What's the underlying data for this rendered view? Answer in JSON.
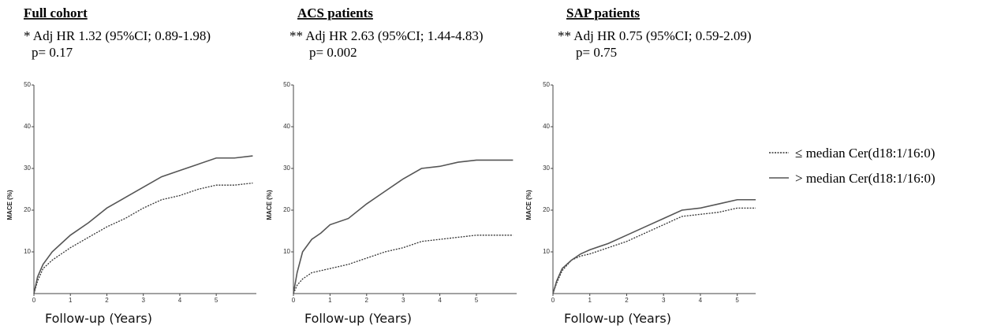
{
  "chart_data": [
    {
      "type": "line",
      "title": "Full cohort",
      "annotations": [
        "* Adj HR 1.32 (95%CI; 0.89-1.98)",
        "p= 0.17"
      ],
      "y_label": "MACE (%)",
      "x_label": "Follow-up (Years)",
      "x": [
        0,
        0.1,
        0.25,
        0.5,
        0.75,
        1,
        1.5,
        2,
        2.5,
        3,
        3.5,
        4,
        4.5,
        5,
        5.5,
        6
      ],
      "series": [
        {
          "style": "dotted",
          "color": "#333333",
          "values": [
            0,
            3,
            6,
            8,
            9.5,
            11,
            13.5,
            16,
            18,
            20.5,
            22.5,
            23.5,
            25,
            26,
            26,
            26.5
          ]
        },
        {
          "style": "solid",
          "color": "#555555",
          "values": [
            0,
            4,
            7,
            10,
            12,
            14,
            17,
            20.5,
            23,
            25.5,
            28,
            29.5,
            31,
            32.5,
            32.5,
            33
          ]
        }
      ],
      "xlim": [
        0,
        6.1
      ],
      "xticks": [
        0,
        1,
        2,
        3,
        4,
        5
      ],
      "ylim": [
        0,
        50
      ],
      "yticks": [
        10,
        20,
        30,
        40,
        50
      ]
    },
    {
      "type": "line",
      "title": "ACS patients",
      "annotations": [
        "** Adj HR 2.63 (95%CI; 1.44-4.83)",
        "p= 0.002"
      ],
      "y_label": "MACE (%)",
      "x_label": "Follow-up (Years)",
      "x": [
        0,
        0.1,
        0.25,
        0.5,
        0.75,
        1,
        1.5,
        2,
        2.5,
        3,
        3.5,
        4,
        4.5,
        5,
        5.5,
        6
      ],
      "series": [
        {
          "style": "dotted",
          "color": "#333333",
          "values": [
            0,
            2,
            3.5,
            5,
            5.5,
            6,
            7,
            8.5,
            10,
            11,
            12.5,
            13,
            13.5,
            14,
            14,
            14
          ]
        },
        {
          "style": "solid",
          "color": "#555555",
          "values": [
            0,
            5,
            10,
            13,
            14.5,
            16.5,
            18,
            21.5,
            24.5,
            27.5,
            30,
            30.5,
            31.5,
            32,
            32,
            32
          ]
        }
      ],
      "xlim": [
        0,
        6.1
      ],
      "xticks": [
        0,
        1,
        2,
        3,
        4,
        5
      ],
      "ylim": [
        0,
        50
      ],
      "yticks": [
        10,
        20,
        30,
        40,
        50
      ]
    },
    {
      "type": "line",
      "title": "SAP patients",
      "annotations": [
        "** Adj HR 0.75 (95%CI; 0.59-2.09)",
        "p= 0.75"
      ],
      "y_label": "MACE (%)",
      "x_label": "Follow-up (Years)",
      "x": [
        0,
        0.1,
        0.25,
        0.5,
        0.75,
        1,
        1.5,
        2,
        2.5,
        3,
        3.5,
        4,
        4.5,
        5,
        5.5
      ],
      "series": [
        {
          "style": "dotted",
          "color": "#333333",
          "values": [
            0,
            2.5,
            5.5,
            8,
            9,
            9.5,
            11,
            12.5,
            14.5,
            16.5,
            18.5,
            19,
            19.5,
            20.5,
            20.5
          ]
        },
        {
          "style": "solid",
          "color": "#555555",
          "values": [
            0,
            3,
            6,
            8,
            9.5,
            10.5,
            12,
            14,
            16,
            18,
            20,
            20.5,
            21.5,
            22.5,
            22.5
          ]
        }
      ],
      "xlim": [
        0,
        5.5
      ],
      "xticks": [
        0,
        1,
        2,
        3,
        4,
        5
      ],
      "ylim": [
        0,
        50
      ],
      "yticks": [
        10,
        20,
        30,
        40,
        50
      ]
    }
  ],
  "legend": [
    {
      "label": "≤ median Cer(d18:1/16:0)",
      "style": "dotted",
      "color": "#333333"
    },
    {
      "label": "> median Cer(d18:1/16:0)",
      "style": "solid",
      "color": "#555555"
    }
  ]
}
